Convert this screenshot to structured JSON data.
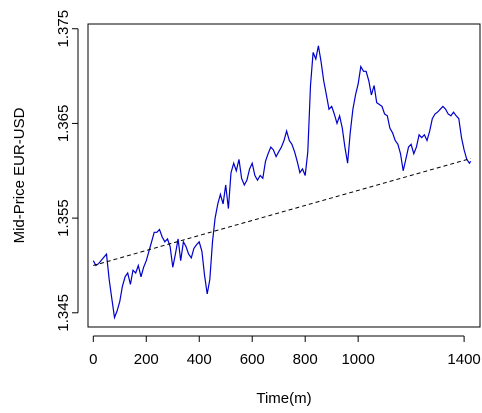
{
  "chart_data": {
    "type": "line",
    "title": "",
    "xlabel": "Time(m)",
    "ylabel": "Mid-Price  EUR-USD",
    "xlim": [
      -20,
      1460
    ],
    "ylim": [
      1.3435,
      1.3755
    ],
    "grid": false,
    "legend": "none",
    "x_ticks": [
      0,
      200,
      400,
      600,
      800,
      1000,
      1400
    ],
    "x_tick_labels": [
      "0",
      "200",
      "400",
      "600",
      "800",
      "1000",
      "1400"
    ],
    "y_ticks": [
      1.345,
      1.355,
      1.365,
      1.375
    ],
    "y_tick_labels": [
      "1.345",
      "1.355",
      "1.365",
      "1.375"
    ],
    "series": [
      {
        "style": "solid",
        "color": "#0000cc",
        "x": [
          0,
          10,
          20,
          35,
          50,
          60,
          70,
          80,
          90,
          100,
          110,
          120,
          130,
          140,
          150,
          160,
          170,
          180,
          190,
          200,
          210,
          220,
          230,
          240,
          250,
          260,
          270,
          280,
          290,
          300,
          310,
          320,
          330,
          340,
          350,
          360,
          370,
          380,
          390,
          400,
          410,
          420,
          430,
          440,
          450,
          460,
          470,
          480,
          490,
          500,
          510,
          520,
          530,
          540,
          550,
          560,
          570,
          580,
          590,
          600,
          610,
          620,
          630,
          640,
          650,
          660,
          670,
          680,
          690,
          700,
          710,
          720,
          730,
          740,
          750,
          760,
          770,
          780,
          790,
          800,
          810,
          820,
          830,
          840,
          850,
          860,
          870,
          880,
          890,
          900,
          910,
          920,
          930,
          940,
          950,
          960,
          970,
          980,
          990,
          1000,
          1010,
          1020,
          1030,
          1040,
          1050,
          1060,
          1070,
          1080,
          1090,
          1100,
          1110,
          1120,
          1130,
          1140,
          1150,
          1160,
          1170,
          1180,
          1190,
          1200,
          1210,
          1220,
          1230,
          1240,
          1250,
          1260,
          1270,
          1280,
          1290,
          1300,
          1310,
          1320,
          1330,
          1340,
          1350,
          1360,
          1370,
          1380,
          1390,
          1400,
          1410,
          1420,
          1425
        ],
        "y": [
          1.3505,
          1.35,
          1.3502,
          1.3507,
          1.3512,
          1.3485,
          1.3465,
          1.3445,
          1.3452,
          1.3462,
          1.3478,
          1.3488,
          1.3492,
          1.348,
          1.3495,
          1.3492,
          1.35,
          1.3488,
          1.3498,
          1.3505,
          1.3515,
          1.3525,
          1.3535,
          1.3535,
          1.3538,
          1.353,
          1.3525,
          1.3528,
          1.352,
          1.3498,
          1.3512,
          1.3528,
          1.3505,
          1.3525,
          1.352,
          1.3512,
          1.3508,
          1.3518,
          1.3522,
          1.3525,
          1.3515,
          1.349,
          1.347,
          1.3485,
          1.3525,
          1.355,
          1.3565,
          1.3575,
          1.3565,
          1.3585,
          1.356,
          1.3598,
          1.3608,
          1.36,
          1.3612,
          1.3592,
          1.3585,
          1.359,
          1.3602,
          1.3608,
          1.3595,
          1.359,
          1.3595,
          1.3592,
          1.361,
          1.3618,
          1.3625,
          1.3622,
          1.3615,
          1.362,
          1.3625,
          1.3632,
          1.3642,
          1.3632,
          1.3628,
          1.362,
          1.361,
          1.3598,
          1.3602,
          1.3595,
          1.362,
          1.369,
          1.3725,
          1.3718,
          1.3732,
          1.3715,
          1.3695,
          1.368,
          1.3665,
          1.3668,
          1.366,
          1.365,
          1.3658,
          1.3645,
          1.3625,
          1.3608,
          1.364,
          1.3665,
          1.368,
          1.3692,
          1.371,
          1.3705,
          1.3705,
          1.3695,
          1.368,
          1.369,
          1.3672,
          1.367,
          1.3668,
          1.366,
          1.3658,
          1.3645,
          1.364,
          1.3632,
          1.3628,
          1.3618,
          1.36,
          1.3612,
          1.3625,
          1.3628,
          1.3618,
          1.3625,
          1.3638,
          1.3635,
          1.3638,
          1.3632,
          1.3642,
          1.3655,
          1.366,
          1.3662,
          1.3665,
          1.3668,
          1.3665,
          1.366,
          1.3658,
          1.3662,
          1.3658,
          1.3655,
          1.3635,
          1.3622,
          1.3612,
          1.3608,
          1.361
        ]
      },
      {
        "style": "dashed",
        "color": "#000000",
        "x": [
          0,
          1425
        ],
        "y": [
          1.35,
          1.3613
        ]
      }
    ]
  }
}
